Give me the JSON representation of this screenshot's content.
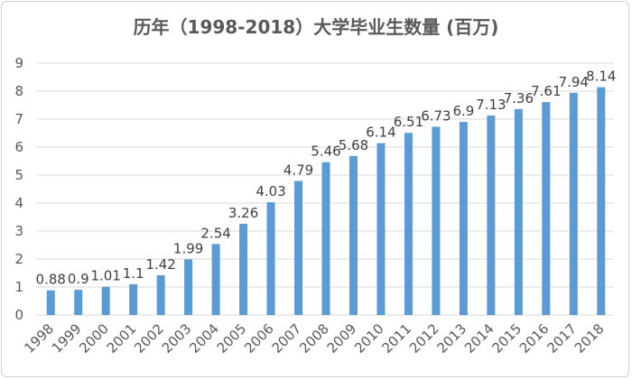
{
  "chart_data": {
    "type": "bar",
    "title": "历年（1998-2018）大学毕业生数量 (百万)",
    "xlabel": "",
    "ylabel": "",
    "ylim": [
      0,
      9
    ],
    "yticks": [
      0,
      1,
      2,
      3,
      4,
      5,
      6,
      7,
      8,
      9
    ],
    "grid": true,
    "bar_color": "#5b9bd5",
    "categories": [
      "1998",
      "1999",
      "2000",
      "2001",
      "2002",
      "2003",
      "2004",
      "2005",
      "2006",
      "2007",
      "2008",
      "2009",
      "2010",
      "2011",
      "2012",
      "2013",
      "2014",
      "2015",
      "2016",
      "2017",
      "2018"
    ],
    "values": [
      0.88,
      0.9,
      1.01,
      1.1,
      1.42,
      1.99,
      2.54,
      3.26,
      4.03,
      4.79,
      5.46,
      5.68,
      6.14,
      6.51,
      6.73,
      6.9,
      7.13,
      7.36,
      7.61,
      7.94,
      8.14
    ],
    "data_labels": [
      "0.88",
      "0.9",
      "1.01",
      "1.1",
      "1.42",
      "1.99",
      "2.54",
      "3.26",
      "4.03",
      "4.79",
      "5.46",
      "5.68",
      "6.14",
      "6.51",
      "6.73",
      "6.9",
      "7.13",
      "7.36",
      "7.61",
      "7.94",
      "8.14"
    ]
  }
}
